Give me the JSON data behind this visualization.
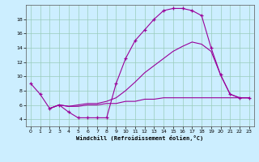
{
  "xlabel": "Windchill (Refroidissement éolien,°C)",
  "background_color": "#cceeff",
  "grid_color": "#99ccbb",
  "line_color": "#990099",
  "xlim": [
    -0.5,
    23.5
  ],
  "ylim": [
    3.0,
    20.0
  ],
  "yticks": [
    4,
    6,
    8,
    10,
    12,
    14,
    16,
    18
  ],
  "xticks": [
    0,
    1,
    2,
    3,
    4,
    5,
    6,
    7,
    8,
    9,
    10,
    11,
    12,
    13,
    14,
    15,
    16,
    17,
    18,
    19,
    20,
    21,
    22,
    23
  ],
  "s1_x": [
    0,
    1,
    2,
    3,
    4,
    5,
    6,
    7,
    8,
    9,
    10,
    11,
    12,
    13,
    14,
    15,
    16,
    17,
    18,
    19,
    20,
    21,
    22,
    23
  ],
  "s1_y": [
    9.0,
    7.5,
    5.5,
    6.0,
    5.0,
    4.2,
    4.2,
    4.2,
    4.2,
    9.0,
    12.5,
    15.0,
    16.5,
    18.0,
    19.2,
    19.5,
    19.5,
    19.2,
    18.5,
    14.0,
    10.2,
    7.5,
    7.0,
    7.0
  ],
  "s2_x": [
    2,
    3,
    4,
    5,
    6,
    7,
    8,
    9,
    10,
    11,
    12,
    13,
    14,
    15,
    16,
    17,
    18,
    19,
    20,
    21,
    22,
    23
  ],
  "s2_y": [
    5.5,
    6.0,
    5.8,
    6.0,
    6.2,
    6.2,
    6.5,
    7.0,
    8.0,
    9.2,
    10.5,
    11.5,
    12.5,
    13.5,
    14.2,
    14.8,
    14.5,
    13.5,
    10.2,
    7.5,
    7.0,
    7.0
  ],
  "s3_x": [
    2,
    3,
    4,
    5,
    6,
    7,
    8,
    9,
    10,
    11,
    12,
    13,
    14,
    15,
    16,
    17,
    18,
    19,
    20,
    21,
    22,
    23
  ],
  "s3_y": [
    5.5,
    6.0,
    5.8,
    5.8,
    6.0,
    6.0,
    6.2,
    6.2,
    6.5,
    6.5,
    6.8,
    6.8,
    7.0,
    7.0,
    7.0,
    7.0,
    7.0,
    7.0,
    7.0,
    7.0,
    7.0,
    7.0
  ]
}
